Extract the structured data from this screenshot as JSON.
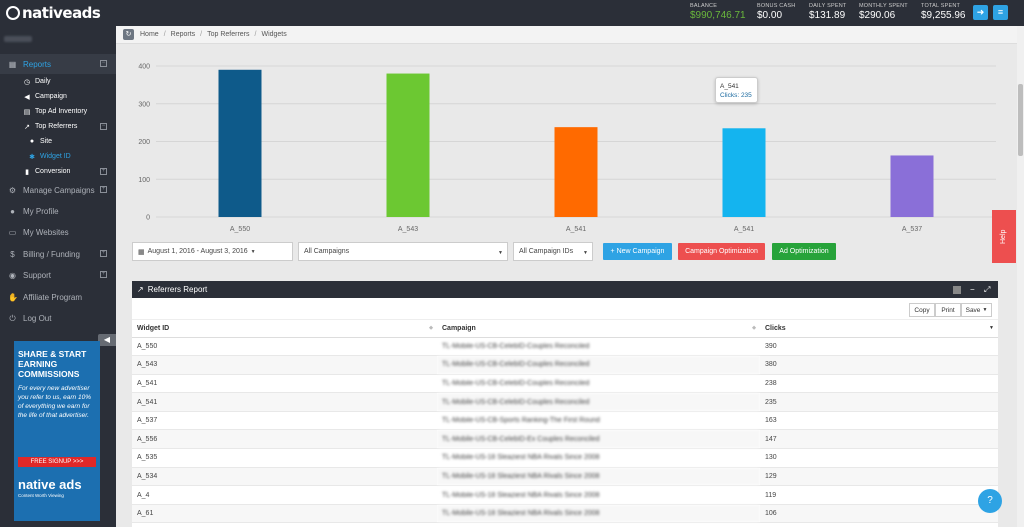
{
  "brand": {
    "logo_text": "nativeads"
  },
  "stats": [
    {
      "label": "BALANCE",
      "value": "$990,746.71",
      "color": "#6ab83c"
    },
    {
      "label": "BONUS CASH",
      "value": "$0.00",
      "color": "#ffffff"
    },
    {
      "label": "DAILY SPENT",
      "value": "$131.89",
      "color": "#ffffff"
    },
    {
      "label": "MONTHLY SPENT",
      "value": "$290.06",
      "color": "#ffffff"
    },
    {
      "label": "TOTAL SPENT",
      "value": "$9,255.96",
      "color": "#ffffff"
    }
  ],
  "topbar_buttons": [
    {
      "icon": "logout-icon"
    },
    {
      "icon": "menu-icon"
    }
  ],
  "sidebar": {
    "user_name": "Pillie Dabe",
    "items": [
      {
        "label": "Reports",
        "icon": "chart-icon",
        "active": true,
        "expand": "⊟"
      },
      {
        "label": "Manage Campaigns",
        "icon": "gears-icon",
        "expand": "⊞"
      },
      {
        "label": "My Profile",
        "icon": "user-icon"
      },
      {
        "label": "My Websites",
        "icon": "monitor-icon"
      },
      {
        "label": "Billing / Funding",
        "icon": "dollar-icon",
        "expand": "⊞"
      },
      {
        "label": "Support",
        "icon": "support-icon",
        "expand": "⊞"
      },
      {
        "label": "Affiliate Program",
        "icon": "handshake-icon"
      },
      {
        "label": "Log Out",
        "icon": "logout-icon"
      }
    ],
    "reports_sub": [
      {
        "label": "Daily",
        "icon": "clock-icon"
      },
      {
        "label": "Campaign",
        "icon": "megaphone-icon"
      },
      {
        "label": "Top Ad Inventory",
        "icon": "inventory-icon"
      },
      {
        "label": "Top Referrers",
        "icon": "external-link-icon",
        "expand": "⊟"
      },
      {
        "label": "Site",
        "icon": "globe-icon",
        "deep": true
      },
      {
        "label": "Widget ID",
        "icon": "cogs-icon",
        "deep": true,
        "selected": true
      },
      {
        "label": "Conversion",
        "icon": "conversion-icon",
        "expand": "⊞"
      }
    ]
  },
  "promo": {
    "headline": "SHARE & START EARNING COMMISSIONS",
    "body": "For every new advertiser you refer to us, earn 10% of everything we earn for the life of that advertiser.",
    "button": "FREE SIGNUP  >>>",
    "logo": "native ads",
    "tagline": "Content Worth Viewing"
  },
  "breadcrumb": [
    "Home",
    "Reports",
    "Top Referrers",
    "Widgets"
  ],
  "chart_data": {
    "type": "bar",
    "categories": [
      "A_550",
      "A_543",
      "A_541",
      "A_541",
      "A_537"
    ],
    "values": [
      390,
      380,
      238,
      235,
      163
    ],
    "colors": [
      "#0e5a8a",
      "#6cc832",
      "#ff6a00",
      "#14b4ef",
      "#8a6fd8"
    ],
    "ylim": [
      0,
      400
    ],
    "yticks": [
      0,
      100,
      200,
      300,
      400
    ],
    "grid": true,
    "xlabel": "",
    "ylabel": ""
  },
  "tooltip": {
    "label": "A_541",
    "value": "Clicks: 235"
  },
  "filters": {
    "date_range": "August 1, 2016 - August 3, 2016",
    "campaign_select": "All Campaigns",
    "campaign_ids_select": "All Campaign IDs",
    "new_campaign": "+ New Campaign",
    "campaign_optimization": "Campaign Optimization",
    "ad_optimization": "Ad Optimization"
  },
  "help_tab": "Help",
  "report": {
    "title": "Referrers Report",
    "toolbar": [
      "Copy",
      "Print",
      "Save"
    ],
    "columns": [
      "Widget ID",
      "Campaign",
      "Clicks"
    ],
    "rows": [
      {
        "widget": "A_550",
        "campaign": "TL-Mobile-US-CB-CelebID-Couples Reconciled",
        "clicks": "390"
      },
      {
        "widget": "A_543",
        "campaign": "TL-Mobile-US-CB-CelebID-Couples Reconciled",
        "clicks": "380"
      },
      {
        "widget": "A_541",
        "campaign": "TL-Mobile-US-CB-CelebID-Couples Reconciled",
        "clicks": "238"
      },
      {
        "widget": "A_541",
        "campaign": "TL-Mobile-US-CB-CelebID-Couples Reconciled",
        "clicks": "235"
      },
      {
        "widget": "A_537",
        "campaign": "TL-Mobile-US-CB-Sports Ranking-The First Round",
        "clicks": "163"
      },
      {
        "widget": "A_556",
        "campaign": "TL-Mobile-US-CB-CelebID-Ex Couples Reconciled",
        "clicks": "147"
      },
      {
        "widget": "A_535",
        "campaign": "TL-Mobile-US-18 Sleaziest NBA Rivals Since 2008",
        "clicks": "130"
      },
      {
        "widget": "A_534",
        "campaign": "TL-Mobile-US-18 Sleaziest NBA Rivals Since 2008",
        "clicks": "129"
      },
      {
        "widget": "A_4",
        "campaign": "TL-Mobile-US-18 Sleaziest NBA Rivals Since 2008",
        "clicks": "119"
      },
      {
        "widget": "A_61",
        "campaign": "TL-Mobile-US-18 Sleaziest NBA Rivals Since 2008",
        "clicks": "106"
      }
    ]
  }
}
